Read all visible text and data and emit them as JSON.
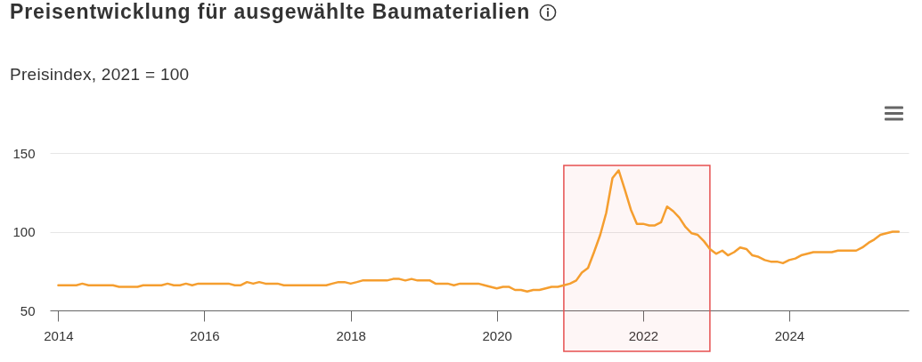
{
  "chart_data": {
    "type": "line",
    "title": "Preisentwicklung für ausgewählte Baumaterialien",
    "subtitle": "Preisindex, 2021 = 100",
    "x": [
      "2014-01",
      "2014-02",
      "2014-03",
      "2014-04",
      "2014-05",
      "2014-06",
      "2014-07",
      "2014-08",
      "2014-09",
      "2014-10",
      "2014-11",
      "2014-12",
      "2015-01",
      "2015-02",
      "2015-03",
      "2015-04",
      "2015-05",
      "2015-06",
      "2015-07",
      "2015-08",
      "2015-09",
      "2015-10",
      "2015-11",
      "2015-12",
      "2016-01",
      "2016-02",
      "2016-03",
      "2016-04",
      "2016-05",
      "2016-06",
      "2016-07",
      "2016-08",
      "2016-09",
      "2016-10",
      "2016-11",
      "2016-12",
      "2017-01",
      "2017-02",
      "2017-03",
      "2017-04",
      "2017-05",
      "2017-06",
      "2017-07",
      "2017-08",
      "2017-09",
      "2017-10",
      "2017-11",
      "2017-12",
      "2018-01",
      "2018-02",
      "2018-03",
      "2018-04",
      "2018-05",
      "2018-06",
      "2018-07",
      "2018-08",
      "2018-09",
      "2018-10",
      "2018-11",
      "2018-12",
      "2019-01",
      "2019-02",
      "2019-03",
      "2019-04",
      "2019-05",
      "2019-06",
      "2019-07",
      "2019-08",
      "2019-09",
      "2019-10",
      "2019-11",
      "2019-12",
      "2020-01",
      "2020-02",
      "2020-03",
      "2020-04",
      "2020-05",
      "2020-06",
      "2020-07",
      "2020-08",
      "2020-09",
      "2020-10",
      "2020-11",
      "2020-12",
      "2021-01",
      "2021-02",
      "2021-03",
      "2021-04",
      "2021-05",
      "2021-06",
      "2021-07",
      "2021-08",
      "2021-09",
      "2021-10",
      "2021-11",
      "2021-12",
      "2022-01",
      "2022-02",
      "2022-03",
      "2022-04",
      "2022-05",
      "2022-06",
      "2022-07",
      "2022-08",
      "2022-09",
      "2022-10",
      "2022-11",
      "2022-12",
      "2023-01",
      "2023-02",
      "2023-03",
      "2023-04",
      "2023-05",
      "2023-06",
      "2023-07",
      "2023-08",
      "2023-09",
      "2023-10",
      "2023-11",
      "2023-12",
      "2024-01",
      "2024-02",
      "2024-03",
      "2024-04",
      "2024-05",
      "2024-06",
      "2024-07",
      "2024-08",
      "2024-09",
      "2024-10",
      "2024-11",
      "2024-12",
      "2025-01",
      "2025-02",
      "2025-03",
      "2025-04",
      "2025-05",
      "2025-06",
      "2025-07"
    ],
    "series": [
      {
        "color": "#f59e2f",
        "values": [
          66,
          66,
          66,
          66,
          67,
          66,
          66,
          66,
          66,
          66,
          65,
          65,
          65,
          65,
          66,
          66,
          66,
          66,
          67,
          66,
          66,
          67,
          66,
          67,
          67,
          67,
          67,
          67,
          67,
          66,
          66,
          68,
          67,
          68,
          67,
          67,
          67,
          66,
          66,
          66,
          66,
          66,
          66,
          66,
          66,
          67,
          68,
          68,
          67,
          68,
          69,
          69,
          69,
          69,
          69,
          70,
          70,
          69,
          70,
          69,
          69,
          69,
          67,
          67,
          67,
          66,
          67,
          67,
          67,
          67,
          66,
          65,
          64,
          65,
          65,
          63,
          63,
          62,
          63,
          63,
          64,
          65,
          65,
          66,
          67,
          69,
          74,
          77,
          87,
          98,
          112,
          134,
          139,
          127,
          114,
          105,
          105,
          104,
          104,
          106,
          116,
          113,
          109,
          103,
          99,
          98,
          94,
          89,
          86,
          88,
          85,
          87,
          90,
          89,
          85,
          84,
          82,
          81,
          81,
          80,
          82,
          83,
          85,
          86,
          87,
          87,
          87,
          87,
          88,
          88,
          88,
          88,
          90,
          93,
          95,
          98,
          99,
          100,
          100
        ]
      }
    ],
    "xlim": [
      "2013-11-20",
      "2025-08-20"
    ],
    "xticks": [
      "2014",
      "2016",
      "2018",
      "2020",
      "2022",
      "2024"
    ],
    "ylim": [
      50,
      150
    ],
    "yticks": [
      50,
      100,
      150
    ],
    "grid": "y",
    "line_style": "solid",
    "bands": [
      {
        "axis": "x",
        "from": "2020-12",
        "to": "2022-12",
        "color": "#e65050"
      }
    ]
  }
}
